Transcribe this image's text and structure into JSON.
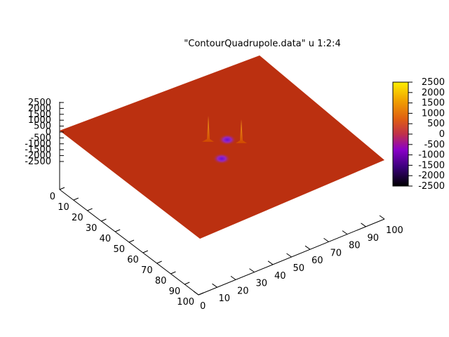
{
  "chart_data": {
    "type": "surface",
    "title": "\"ContourQuadrupole.data\" u 1:2:4",
    "x_ticks": [
      0,
      10,
      20,
      30,
      40,
      50,
      60,
      70,
      80,
      90,
      100
    ],
    "y_ticks": [
      0,
      10,
      20,
      30,
      40,
      50,
      60,
      70,
      80,
      90,
      100
    ],
    "z_ticks": [
      2500,
      2000,
      1500,
      1000,
      500,
      0,
      -500,
      -1000,
      -1500,
      -2000,
      -2500
    ],
    "xlim": [
      0,
      100
    ],
    "ylim": [
      0,
      100
    ],
    "zlim": [
      -2500,
      2500
    ],
    "surface_base_value": 0,
    "features": [
      {
        "kind": "peak",
        "value": 2500
      },
      {
        "kind": "peak",
        "value": 2500
      },
      {
        "kind": "dip",
        "value": -1500
      },
      {
        "kind": "dip",
        "value": -1500
      }
    ],
    "colorbar": {
      "ticks": [
        2500,
        2000,
        1500,
        1000,
        500,
        0,
        -500,
        -1000,
        -1500,
        -2000,
        -2500
      ],
      "palette": [
        "#000000",
        "#3a007a",
        "#8a00c8",
        "#c0304a",
        "#e06010",
        "#f0a000",
        "#ffee00"
      ]
    }
  }
}
